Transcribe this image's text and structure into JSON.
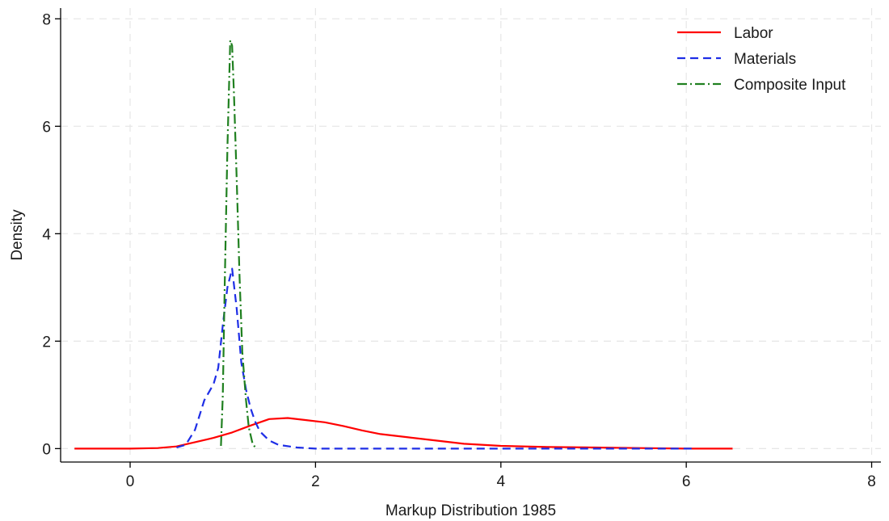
{
  "chart_data": {
    "type": "line",
    "title": "",
    "xlabel": "Markup Distribution 1985",
    "ylabel": "Density",
    "xlim": [
      -0.75,
      8.1
    ],
    "ylim": [
      -0.25,
      8.2
    ],
    "xticks": [
      0,
      2,
      4,
      6,
      8
    ],
    "yticks": [
      0,
      2,
      4,
      6,
      8
    ],
    "grid": true,
    "legend_position": "top-right",
    "series": [
      {
        "name": "Labor",
        "color": "#ff0000",
        "dash": "solid",
        "x": [
          -0.6,
          0.0,
          0.3,
          0.5,
          0.7,
          0.9,
          1.1,
          1.3,
          1.5,
          1.7,
          1.9,
          2.1,
          2.3,
          2.5,
          2.7,
          3.0,
          3.3,
          3.6,
          4.0,
          4.5,
          5.0,
          5.5,
          6.0,
          6.5
        ],
        "y": [
          0.0,
          0.0,
          0.01,
          0.04,
          0.12,
          0.2,
          0.3,
          0.43,
          0.55,
          0.57,
          0.53,
          0.49,
          0.42,
          0.34,
          0.27,
          0.21,
          0.15,
          0.09,
          0.05,
          0.03,
          0.02,
          0.01,
          0.0,
          0.0
        ]
      },
      {
        "name": "Materials",
        "color": "#1e2ee6",
        "dash": "dashed",
        "x": [
          0.5,
          0.6,
          0.7,
          0.8,
          0.9,
          0.95,
          1.0,
          1.05,
          1.1,
          1.15,
          1.2,
          1.25,
          1.3,
          1.35,
          1.4,
          1.5,
          1.6,
          1.8,
          2.0,
          2.5,
          3.0,
          4.0,
          5.0,
          6.1
        ],
        "y": [
          0.02,
          0.07,
          0.35,
          0.9,
          1.2,
          1.5,
          2.3,
          3.0,
          3.35,
          2.6,
          1.6,
          1.1,
          0.75,
          0.5,
          0.32,
          0.15,
          0.07,
          0.02,
          0.0,
          0.0,
          0.0,
          0.0,
          0.0,
          0.0
        ]
      },
      {
        "name": "Composite Input",
        "color": "#208020",
        "dash": "dashdot",
        "x": [
          0.98,
          1.0,
          1.02,
          1.05,
          1.08,
          1.1,
          1.12,
          1.15,
          1.18,
          1.21,
          1.25,
          1.28,
          1.32,
          1.35
        ],
        "y": [
          0.05,
          1.0,
          3.0,
          5.6,
          7.6,
          7.5,
          6.6,
          5.0,
          3.2,
          1.8,
          0.9,
          0.4,
          0.1,
          0.02
        ]
      }
    ]
  }
}
